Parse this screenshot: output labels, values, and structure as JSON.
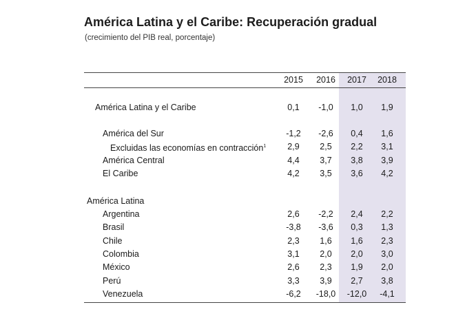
{
  "title": "América Latina y el Caribe: Recuperación gradual",
  "subtitle": "(crecimiento del PIB real, porcentaje)",
  "table": {
    "years": [
      "2015",
      "2016",
      "2017",
      "2018"
    ],
    "rows": [
      {
        "label": "América Latina y el Caribe",
        "values": [
          "0,1",
          "-1,0",
          "1,0",
          "1,9"
        ]
      },
      {
        "label": "América del Sur",
        "values": [
          "-1,2",
          "-2,6",
          "0,4",
          "1,6"
        ]
      },
      {
        "label": "Excluidas las economías en contracción",
        "note": "1",
        "values": [
          "2,9",
          "2,5",
          "2,2",
          "3,1"
        ]
      },
      {
        "label": "América Central",
        "values": [
          "4,4",
          "3,7",
          "3,8",
          "3,9"
        ]
      },
      {
        "label": "El Caribe",
        "values": [
          "4,2",
          "3,5",
          "3,6",
          "4,2"
        ]
      },
      {
        "label": "América Latina",
        "values": []
      },
      {
        "label": "Argentina",
        "values": [
          "2,6",
          "-2,2",
          "2,4",
          "2,2"
        ]
      },
      {
        "label": "Brasil",
        "values": [
          "-3,8",
          "-3,6",
          "0,3",
          "1,3"
        ]
      },
      {
        "label": "Chile",
        "values": [
          "2,3",
          "1,6",
          "1,6",
          "2,3"
        ]
      },
      {
        "label": "Colombia",
        "values": [
          "3,1",
          "2,0",
          "2,0",
          "3,0"
        ]
      },
      {
        "label": "México",
        "values": [
          "2,6",
          "2,3",
          "1,9",
          "2,0"
        ]
      },
      {
        "label": "Perú",
        "values": [
          "3,3",
          "3,9",
          "2,7",
          "3,8"
        ]
      },
      {
        "label": "Venezuela",
        "values": [
          "-6,2",
          "-18,0",
          "-12,0",
          "-4,1"
        ]
      }
    ]
  }
}
